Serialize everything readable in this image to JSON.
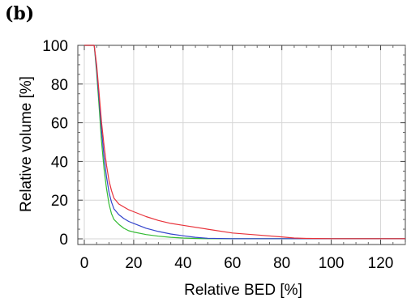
{
  "panel_label": "(b)",
  "chart_data": {
    "type": "line",
    "xlabel": "Relative BED [%]",
    "ylabel": "Relative volume [%]",
    "xlim": [
      0,
      130
    ],
    "ylim": [
      0,
      100
    ],
    "xticks": [
      0,
      20,
      40,
      60,
      80,
      100,
      120
    ],
    "yticks": [
      0,
      20,
      40,
      60,
      80,
      100
    ],
    "grid": true,
    "series": [
      {
        "color": "#e8323a",
        "x": [
          0,
          2,
          4,
          5,
          6,
          7,
          8,
          9,
          10,
          11,
          12,
          14,
          16,
          18,
          20,
          25,
          30,
          35,
          40,
          50,
          60,
          70,
          80,
          85,
          90,
          100,
          110,
          120,
          130
        ],
        "y": [
          100,
          100,
          100,
          90,
          75,
          60,
          48,
          38,
          30,
          25,
          21,
          18,
          16.5,
          15,
          14,
          11.5,
          9.5,
          8,
          7,
          5,
          3,
          2,
          1,
          0.4,
          0.2,
          0.1,
          0.1,
          0.1,
          0.1
        ]
      },
      {
        "color": "#3344cc",
        "x": [
          0,
          2,
          4,
          5,
          6,
          7,
          8,
          9,
          10,
          11,
          12,
          14,
          16,
          18,
          20,
          25,
          30,
          35,
          40,
          45,
          50,
          60,
          80,
          100,
          130
        ],
        "y": [
          100,
          100,
          100,
          88,
          72,
          56,
          42,
          32,
          24,
          19,
          15.5,
          12.5,
          10.5,
          9,
          8,
          5.5,
          3.8,
          2.5,
          1.6,
          0.8,
          0.3,
          0.1,
          0.1,
          0.1,
          0.1
        ]
      },
      {
        "color": "#33bb33",
        "x": [
          0,
          2,
          4,
          5,
          6,
          7,
          8,
          9,
          10,
          11,
          12,
          14,
          16,
          18,
          20,
          25,
          30,
          35,
          40,
          45,
          50,
          60,
          80,
          100,
          130
        ],
        "y": [
          100,
          100,
          100,
          86,
          68,
          50,
          36,
          26,
          18,
          13,
          10,
          7.5,
          5.5,
          4.2,
          3.5,
          2.2,
          1.4,
          0.8,
          0.4,
          0.2,
          0.1,
          0.1,
          0.1,
          0.1,
          0.1
        ]
      }
    ]
  }
}
